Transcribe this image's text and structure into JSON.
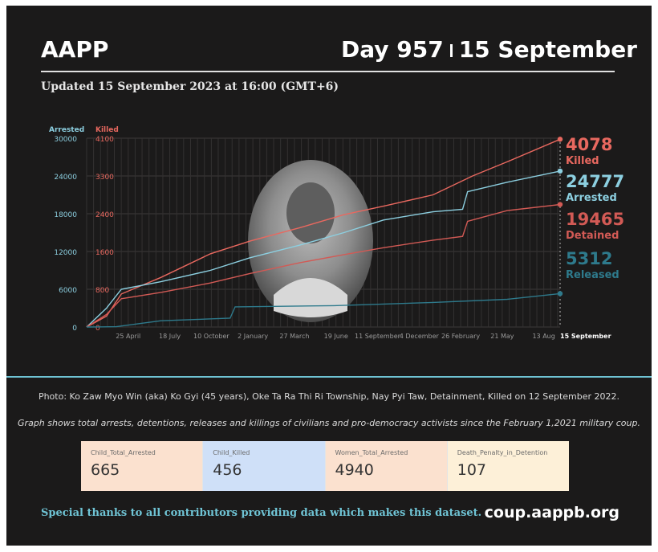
{
  "header": {
    "brand": "AAPP",
    "day_label": "Day 957",
    "date_label": "15 September",
    "updated": "Updated 15 September 2023 at 16:00 (GMT+6)"
  },
  "colors": {
    "background": "#1b1a1a",
    "killed": "#e8685f",
    "arrested": "#8ccfe0",
    "detained": "#d25a55",
    "released": "#2e7a8c",
    "accent": "#6fc3d4"
  },
  "chart_data": {
    "type": "line",
    "left_axis": {
      "title": "Arrested",
      "ticks": [
        0,
        6000,
        12000,
        18000,
        24000,
        30000
      ],
      "ylim": [
        0,
        30000
      ],
      "series": [
        "Arrested",
        "Detained",
        "Released"
      ]
    },
    "right_axis": {
      "title": "Killed",
      "ticks": [
        0,
        800,
        1600,
        2400,
        3300,
        4100
      ],
      "series": [
        "Killed"
      ]
    },
    "x_tick_labels": [
      "25 April",
      "18 July",
      "10 October",
      "2 January",
      "27 March",
      "19 June",
      "11 September",
      "4 December",
      "26 February",
      "21 May",
      "13 Aug",
      "15 September"
    ],
    "x_tick_days": [
      84,
      168,
      252,
      336,
      420,
      504,
      588,
      672,
      756,
      840,
      924,
      957
    ],
    "x_range_days": [
      0,
      957
    ],
    "grid": true,
    "series": [
      {
        "name": "Killed",
        "axis": "right",
        "points": [
          [
            0,
            0
          ],
          [
            40,
            230
          ],
          [
            70,
            700
          ],
          [
            150,
            1050
          ],
          [
            250,
            1550
          ],
          [
            330,
            1820
          ],
          [
            430,
            2100
          ],
          [
            520,
            2380
          ],
          [
            600,
            2580
          ],
          [
            700,
            2850
          ],
          [
            780,
            3300
          ],
          [
            850,
            3600
          ],
          [
            957,
            4078
          ]
        ],
        "end_value": "4078",
        "end_label": "Killed"
      },
      {
        "name": "Arrested",
        "axis": "left",
        "points": [
          [
            0,
            0
          ],
          [
            40,
            3000
          ],
          [
            70,
            6000
          ],
          [
            150,
            7200
          ],
          [
            250,
            9000
          ],
          [
            330,
            11000
          ],
          [
            430,
            13000
          ],
          [
            520,
            15000
          ],
          [
            600,
            17000
          ],
          [
            700,
            18300
          ],
          [
            760,
            18700
          ],
          [
            770,
            21500
          ],
          [
            850,
            23000
          ],
          [
            957,
            24777
          ]
        ],
        "end_value": "24777",
        "end_label": "Arrested"
      },
      {
        "name": "Detained",
        "axis": "left",
        "points": [
          [
            0,
            0
          ],
          [
            40,
            2000
          ],
          [
            70,
            4500
          ],
          [
            150,
            5500
          ],
          [
            250,
            7000
          ],
          [
            330,
            8500
          ],
          [
            430,
            10200
          ],
          [
            520,
            11500
          ],
          [
            600,
            12600
          ],
          [
            700,
            13800
          ],
          [
            760,
            14400
          ],
          [
            770,
            16800
          ],
          [
            850,
            18500
          ],
          [
            957,
            19465
          ]
        ],
        "end_value": "19465",
        "end_label": "Detained"
      },
      {
        "name": "Released",
        "axis": "left",
        "points": [
          [
            0,
            0
          ],
          [
            60,
            50
          ],
          [
            150,
            1000
          ],
          [
            290,
            1400
          ],
          [
            300,
            3200
          ],
          [
            500,
            3400
          ],
          [
            700,
            3900
          ],
          [
            850,
            4400
          ],
          [
            957,
            5312
          ]
        ],
        "end_value": "5312",
        "end_label": "Released"
      }
    ]
  },
  "footer": {
    "photo_caption": "Photo: Ko Zaw Myo Win (aka) Ko Gyi (45 years), Oke Ta Ra Thi Ri Township, Nay Pyi Taw, Detainment, Killed on 12 September 2022.",
    "graph_note": "Graph shows total arrests, detentions, releases and killings of civilians and pro-democracy activists since the February 1,2021 military coup.",
    "cards": [
      {
        "label": "Child_Total_Arrested",
        "value": "665",
        "color": "#fbe1cf"
      },
      {
        "label": "Child_Killed",
        "value": "456",
        "color": "#cfe0f8"
      },
      {
        "label": "Women_Total_Arrested",
        "value": "4940",
        "color": "#fbe1cf"
      },
      {
        "label": "Death_Penalty_in_Detention",
        "value": "107",
        "color": "#fdf0d8"
      }
    ],
    "thanks": "Special thanks to all contributors providing data which makes this dataset.",
    "site": "coup.aappb.org"
  }
}
